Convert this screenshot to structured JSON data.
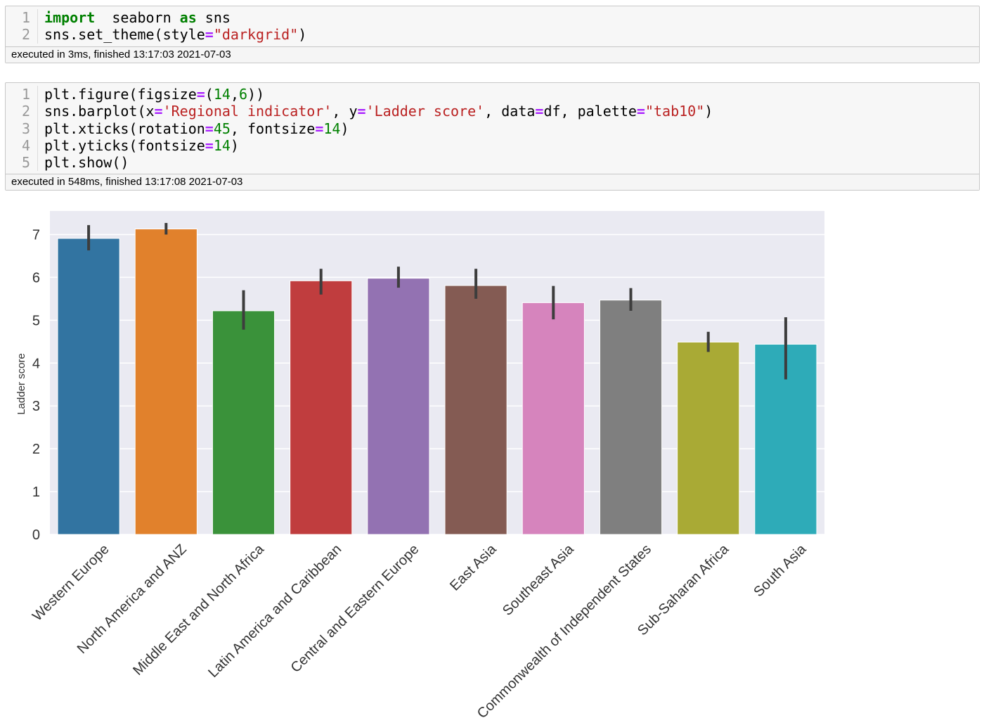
{
  "cells": [
    {
      "lines": [
        {
          "num": "1",
          "tokens": [
            [
              "kw",
              "import"
            ],
            [
              "",
              "  seaborn "
            ],
            [
              "kw",
              "as"
            ],
            [
              "",
              " sns"
            ]
          ]
        },
        {
          "num": "2",
          "tokens": [
            [
              "",
              "sns.set_theme(style"
            ],
            [
              "op",
              "="
            ],
            [
              "str",
              "\"darkgrid\""
            ],
            [
              "",
              ")"
            ]
          ]
        }
      ],
      "footer": "executed in 3ms, finished 13:17:03 2021-07-03"
    },
    {
      "lines": [
        {
          "num": "1",
          "tokens": [
            [
              "",
              "plt.figure(figsize"
            ],
            [
              "op",
              "="
            ],
            [
              "",
              "("
            ],
            [
              "num",
              "14"
            ],
            [
              "",
              ","
            ],
            [
              "num",
              "6"
            ],
            [
              "",
              "))"
            ]
          ]
        },
        {
          "num": "2",
          "tokens": [
            [
              "",
              "sns.barplot(x"
            ],
            [
              "op",
              "="
            ],
            [
              "str",
              "'Regional indicator'"
            ],
            [
              "",
              ", y"
            ],
            [
              "op",
              "="
            ],
            [
              "str",
              "'Ladder score'"
            ],
            [
              "",
              ", data"
            ],
            [
              "op",
              "="
            ],
            [
              "",
              "df, palette"
            ],
            [
              "op",
              "="
            ],
            [
              "str",
              "\"tab10\""
            ],
            [
              "",
              ")"
            ]
          ]
        },
        {
          "num": "3",
          "tokens": [
            [
              "",
              "plt.xticks(rotation"
            ],
            [
              "op",
              "="
            ],
            [
              "num",
              "45"
            ],
            [
              "",
              ", fontsize"
            ],
            [
              "op",
              "="
            ],
            [
              "num",
              "14"
            ],
            [
              "",
              ")"
            ]
          ]
        },
        {
          "num": "4",
          "tokens": [
            [
              "",
              "plt.yticks(fontsize"
            ],
            [
              "op",
              "="
            ],
            [
              "num",
              "14"
            ],
            [
              "",
              ")"
            ]
          ]
        },
        {
          "num": "5",
          "tokens": [
            [
              "",
              "plt.show()"
            ]
          ]
        }
      ],
      "footer": "executed in 548ms, finished 13:17:08 2021-07-03"
    }
  ],
  "chart_data": {
    "type": "bar",
    "title": "",
    "xlabel": "",
    "ylabel": "Ladder score",
    "ylim": [
      0,
      7.55
    ],
    "yticks": [
      0,
      1,
      2,
      3,
      4,
      5,
      6,
      7
    ],
    "grid": true,
    "background": "#eaeaf2",
    "categories": [
      "Western Europe",
      "North America and ANZ",
      "Middle East and North Africa",
      "Latin America and Caribbean",
      "Central and Eastern Europe",
      "East Asia",
      "Southeast Asia",
      "Commonwealth of Independent States",
      "Sub-Saharan Africa",
      "South Asia"
    ],
    "values": [
      6.91,
      7.13,
      5.22,
      5.92,
      5.98,
      5.81,
      5.41,
      5.47,
      4.49,
      4.44
    ],
    "error_low": [
      6.63,
      7.0,
      4.78,
      5.6,
      5.76,
      5.5,
      5.02,
      5.22,
      4.26,
      3.62
    ],
    "error_high": [
      7.22,
      7.27,
      5.7,
      6.2,
      6.25,
      6.2,
      5.8,
      5.75,
      4.73,
      5.07
    ],
    "colors": [
      "#3274a1",
      "#e1812c",
      "#3a923a",
      "#c03d3e",
      "#9372b2",
      "#845b53",
      "#d684bd",
      "#7f7f7f",
      "#a9aa35",
      "#2eabb8"
    ]
  }
}
